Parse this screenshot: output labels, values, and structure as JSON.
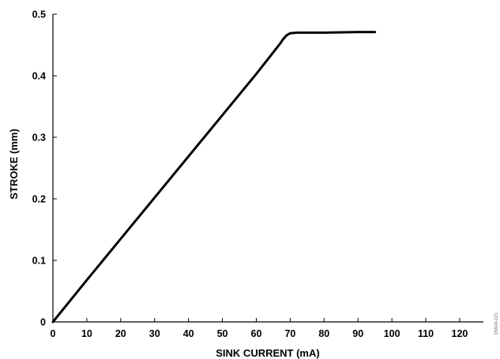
{
  "chart_data": {
    "type": "line",
    "title": "",
    "xlabel": "SINK CURRENT (mA)",
    "ylabel": "STROKE (mm)",
    "xlim": [
      0,
      127
    ],
    "ylim": [
      0,
      0.5
    ],
    "xticks": [
      0,
      10,
      20,
      30,
      40,
      50,
      60,
      70,
      80,
      90,
      100,
      110,
      120
    ],
    "yticks": [
      0,
      0.1,
      0.2,
      0.3,
      0.4,
      0.5
    ],
    "xtick_labels": [
      "0",
      "10",
      "20",
      "30",
      "40",
      "50",
      "60",
      "70",
      "80",
      "90",
      "100",
      "110",
      "120"
    ],
    "ytick_labels": [
      "0",
      "0.1",
      "0.2",
      "0.3",
      "0.4",
      "0.5"
    ],
    "grid": false,
    "series": [
      {
        "x": [
          0,
          10,
          20,
          30,
          40,
          50,
          60,
          67,
          68,
          69,
          70,
          72,
          80,
          90,
          95
        ],
        "y": [
          0,
          0.068,
          0.135,
          0.202,
          0.269,
          0.336,
          0.403,
          0.452,
          0.46,
          0.466,
          0.469,
          0.47,
          0.47,
          0.471,
          0.471
        ]
      }
    ],
    "line_color": "#000000",
    "figure_id": "05604-021"
  }
}
